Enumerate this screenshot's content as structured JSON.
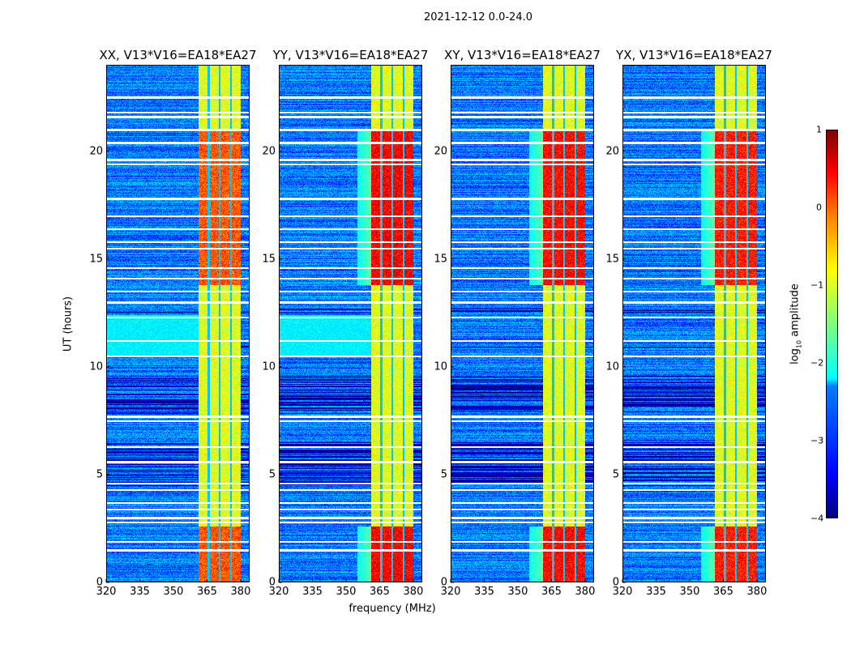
{
  "suptitle": "2021-12-12 0.0-24.0",
  "chart_data": {
    "type": "heatmap",
    "xlabel": "frequency (MHz)",
    "ylabel": "UT (hours)",
    "xlim": [
      320,
      384
    ],
    "ylim": [
      0,
      24
    ],
    "xticks": [
      "320",
      "335",
      "350",
      "365",
      "380"
    ],
    "yticks": [
      "0",
      "5",
      "10",
      "15",
      "20"
    ],
    "panels": [
      {
        "title": "XX, V13*V16=EA18*EA27",
        "band_strength": 0.55
      },
      {
        "title": "YY, V13*V16=EA18*EA27",
        "band_strength": 1.0
      },
      {
        "title": "XY, V13*V16=EA18*EA27",
        "band_strength": 0.95
      },
      {
        "title": "YX, V13*V16=EA18*EA27",
        "band_strength": 0.85
      }
    ],
    "rfi_band_mhz": [
      361,
      380
    ],
    "rfi_band_gaps_mhz": [
      365.5,
      370.5,
      375.5
    ],
    "background_log_amp": -2.8,
    "band_log_amp_quiet": -1.0,
    "band_log_amp_active": 0.4,
    "active_hours": [
      [
        0,
        2.6
      ],
      [
        13.8,
        21
      ]
    ],
    "flagged_hours": [
      22.5,
      21.8,
      21.6,
      21.0,
      20.4,
      19.6,
      19.4,
      17.8,
      17.0,
      16.4,
      15.8,
      15.5,
      14.6,
      14.1,
      13.5,
      13.0,
      12.3,
      11.2,
      10.5,
      7.7,
      7.5,
      6.3,
      5.6,
      4.6,
      4.3,
      3.7,
      3.4,
      3.0,
      2.8,
      1.9,
      1.5
    ],
    "dark_hours": [
      [
        12.5,
        12.7
      ],
      [
        10.9,
        11.0
      ],
      [
        7.8,
        9.6
      ],
      [
        4.5,
        6.5
      ]
    ],
    "colorbar": {
      "label": "log10 amplitude",
      "label_main": "log",
      "label_sub": "10",
      "label_rest": " amplitude",
      "range": [
        -4,
        1
      ],
      "ticks": [
        "1",
        "0",
        "−1",
        "−2",
        "−3",
        "−4"
      ],
      "colormap": "jet"
    }
  }
}
